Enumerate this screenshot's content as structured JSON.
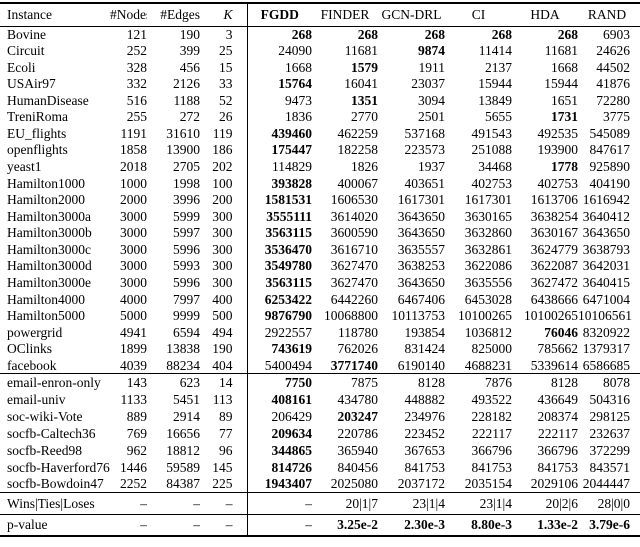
{
  "table": {
    "columns": [
      {
        "key": "instance",
        "label": "Instance"
      },
      {
        "key": "nodes",
        "label": "#Nodes"
      },
      {
        "key": "edges",
        "label": "#Edges"
      },
      {
        "key": "k",
        "label": "K",
        "italic": true
      },
      {
        "key": "fgdd",
        "label": "FGDD",
        "bold": true
      },
      {
        "key": "finder",
        "label": "FINDER"
      },
      {
        "key": "gcn_drl",
        "label": "GCN-DRL"
      },
      {
        "key": "ci",
        "label": "CI"
      },
      {
        "key": "hda",
        "label": "HDA"
      },
      {
        "key": "rand",
        "label": "RAND"
      }
    ],
    "groups": [
      {
        "rows": [
          {
            "label": "Bovine",
            "nodes": "121",
            "edges": "190",
            "k": "3",
            "values": [
              "268",
              "268",
              "268",
              "268",
              "268",
              "6903"
            ],
            "bold": [
              true,
              true,
              true,
              true,
              true,
              false
            ]
          },
          {
            "label": "Circuit",
            "nodes": "252",
            "edges": "399",
            "k": "25",
            "values": [
              "24090",
              "11681",
              "9874",
              "11414",
              "11681",
              "24626"
            ],
            "bold": [
              false,
              false,
              true,
              false,
              false,
              false
            ]
          },
          {
            "label": "Ecoli",
            "nodes": "328",
            "edges": "456",
            "k": "15",
            "values": [
              "1668",
              "1579",
              "1911",
              "2137",
              "1668",
              "44502"
            ],
            "bold": [
              false,
              true,
              false,
              false,
              false,
              false
            ]
          },
          {
            "label": "USAir97",
            "nodes": "332",
            "edges": "2126",
            "k": "33",
            "values": [
              "15764",
              "16041",
              "23037",
              "15944",
              "15944",
              "41876"
            ],
            "bold": [
              true,
              false,
              false,
              false,
              false,
              false
            ]
          },
          {
            "label": "HumanDisease",
            "nodes": "516",
            "edges": "1188",
            "k": "52",
            "values": [
              "9473",
              "1351",
              "3094",
              "13849",
              "1651",
              "72280"
            ],
            "bold": [
              false,
              true,
              false,
              false,
              false,
              false
            ]
          },
          {
            "label": "TreniRoma",
            "nodes": "255",
            "edges": "272",
            "k": "26",
            "values": [
              "1836",
              "2770",
              "2501",
              "5655",
              "1731",
              "3775"
            ],
            "bold": [
              false,
              false,
              false,
              false,
              true,
              false
            ]
          },
          {
            "label": "EU_flights",
            "nodes": "1191",
            "edges": "31610",
            "k": "119",
            "values": [
              "439460",
              "462259",
              "537168",
              "491543",
              "492535",
              "545089"
            ],
            "bold": [
              true,
              false,
              false,
              false,
              false,
              false
            ]
          },
          {
            "label": "openflights",
            "nodes": "1858",
            "edges": "13900",
            "k": "186",
            "values": [
              "175447",
              "182258",
              "223573",
              "251088",
              "193900",
              "847617"
            ],
            "bold": [
              true,
              false,
              false,
              false,
              false,
              false
            ]
          },
          {
            "label": "yeast1",
            "nodes": "2018",
            "edges": "2705",
            "k": "202",
            "values": [
              "114829",
              "1826",
              "1937",
              "34468",
              "1778",
              "925890"
            ],
            "bold": [
              false,
              false,
              false,
              false,
              true,
              false
            ]
          },
          {
            "label": "Hamilton1000",
            "nodes": "1000",
            "edges": "1998",
            "k": "100",
            "values": [
              "393828",
              "400067",
              "403651",
              "402753",
              "402753",
              "404190"
            ],
            "bold": [
              true,
              false,
              false,
              false,
              false,
              false
            ]
          },
          {
            "label": "Hamilton2000",
            "nodes": "2000",
            "edges": "3996",
            "k": "200",
            "values": [
              "1581531",
              "1606530",
              "1617301",
              "1617301",
              "1613706",
              "1616942"
            ],
            "bold": [
              true,
              false,
              false,
              false,
              false,
              false
            ]
          },
          {
            "label": "Hamilton3000a",
            "nodes": "3000",
            "edges": "5999",
            "k": "300",
            "values": [
              "3555111",
              "3614020",
              "3643650",
              "3630165",
              "3638254",
              "3640412"
            ],
            "bold": [
              true,
              false,
              false,
              false,
              false,
              false
            ]
          },
          {
            "label": "Hamilton3000b",
            "nodes": "3000",
            "edges": "5997",
            "k": "300",
            "values": [
              "3563115",
              "3600590",
              "3643650",
              "3632860",
              "3630167",
              "3643650"
            ],
            "bold": [
              true,
              false,
              false,
              false,
              false,
              false
            ]
          },
          {
            "label": "Hamilton3000c",
            "nodes": "3000",
            "edges": "5996",
            "k": "300",
            "values": [
              "3536470",
              "3616710",
              "3635557",
              "3632861",
              "3624779",
              "3638793"
            ],
            "bold": [
              true,
              false,
              false,
              false,
              false,
              false
            ]
          },
          {
            "label": "Hamilton3000d",
            "nodes": "3000",
            "edges": "5993",
            "k": "300",
            "values": [
              "3549780",
              "3627470",
              "3638253",
              "3622086",
              "3622087",
              "3642031"
            ],
            "bold": [
              true,
              false,
              false,
              false,
              false,
              false
            ]
          },
          {
            "label": "Hamilton3000e",
            "nodes": "3000",
            "edges": "5996",
            "k": "300",
            "values": [
              "3563115",
              "3627470",
              "3643650",
              "3635556",
              "3627472",
              "3640415"
            ],
            "bold": [
              true,
              false,
              false,
              false,
              false,
              false
            ]
          },
          {
            "label": "Hamilton4000",
            "nodes": "4000",
            "edges": "7997",
            "k": "400",
            "values": [
              "6253422",
              "6442260",
              "6467406",
              "6453028",
              "6438666",
              "6471004"
            ],
            "bold": [
              true,
              false,
              false,
              false,
              false,
              false
            ]
          },
          {
            "label": "Hamilton5000",
            "nodes": "5000",
            "edges": "9999",
            "k": "500",
            "values": [
              "9876790",
              "10068800",
              "10113753",
              "10100265",
              "10100265",
              "10106561"
            ],
            "bold": [
              true,
              false,
              false,
              false,
              false,
              false
            ]
          },
          {
            "label": "powergrid",
            "nodes": "4941",
            "edges": "6594",
            "k": "494",
            "values": [
              "2922557",
              "118780",
              "193854",
              "1036812",
              "76046",
              "8320922"
            ],
            "bold": [
              false,
              false,
              false,
              false,
              true,
              false
            ]
          },
          {
            "label": "OClinks",
            "nodes": "1899",
            "edges": "13838",
            "k": "190",
            "values": [
              "743619",
              "762026",
              "831424",
              "825000",
              "785662",
              "1379317"
            ],
            "bold": [
              true,
              false,
              false,
              false,
              false,
              false
            ]
          },
          {
            "label": "facebook",
            "nodes": "4039",
            "edges": "88234",
            "k": "404",
            "values": [
              "5400494",
              "3771740",
              "6190140",
              "4688231",
              "5339614",
              "6586685"
            ],
            "bold": [
              false,
              true,
              false,
              false,
              false,
              false
            ]
          }
        ]
      },
      {
        "rows": [
          {
            "label": "email-enron-only",
            "nodes": "143",
            "edges": "623",
            "k": "14",
            "values": [
              "7750",
              "7875",
              "8128",
              "7876",
              "8128",
              "8078"
            ],
            "bold": [
              true,
              false,
              false,
              false,
              false,
              false
            ]
          },
          {
            "label": "email-univ",
            "nodes": "1133",
            "edges": "5451",
            "k": "113",
            "values": [
              "408161",
              "434780",
              "448882",
              "493522",
              "436649",
              "504316"
            ],
            "bold": [
              true,
              false,
              false,
              false,
              false,
              false
            ]
          },
          {
            "label": "soc-wiki-Vote",
            "nodes": "889",
            "edges": "2914",
            "k": "89",
            "values": [
              "206429",
              "203247",
              "234976",
              "228182",
              "208374",
              "298125"
            ],
            "bold": [
              false,
              true,
              false,
              false,
              false,
              false
            ]
          },
          {
            "label": "socfb-Caltech36",
            "nodes": "769",
            "edges": "16656",
            "k": "77",
            "values": [
              "209634",
              "220786",
              "223452",
              "222117",
              "222117",
              "232637"
            ],
            "bold": [
              true,
              false,
              false,
              false,
              false,
              false
            ]
          },
          {
            "label": "socfb-Reed98",
            "nodes": "962",
            "edges": "18812",
            "k": "96",
            "values": [
              "344865",
              "365940",
              "367653",
              "366796",
              "366796",
              "372299"
            ],
            "bold": [
              true,
              false,
              false,
              false,
              false,
              false
            ]
          },
          {
            "label": "socfb-Haverford76",
            "nodes": "1446",
            "edges": "59589",
            "k": "145",
            "values": [
              "814726",
              "840456",
              "841753",
              "841753",
              "841753",
              "843571"
            ],
            "bold": [
              true,
              false,
              false,
              false,
              false,
              false
            ]
          },
          {
            "label": "socfb-Bowdoin47",
            "nodes": "2252",
            "edges": "84387",
            "k": "225",
            "values": [
              "1943407",
              "2025080",
              "2037172",
              "2035154",
              "2029106",
              "2044447"
            ],
            "bold": [
              true,
              false,
              false,
              false,
              false,
              false
            ]
          }
        ]
      }
    ],
    "summary": [
      {
        "label": "Wins|Ties|Loses",
        "nodes": "–",
        "edges": "–",
        "k": "–",
        "values": [
          "–",
          "20|1|7",
          "23|1|4",
          "23|1|4",
          "20|2|6",
          "28|0|0"
        ],
        "bold": [
          false,
          false,
          false,
          false,
          false,
          false
        ]
      },
      {
        "label": "p-value",
        "nodes": "–",
        "edges": "–",
        "k": "–",
        "values": [
          "–",
          "3.25e-2",
          "2.30e-3",
          "8.80e-3",
          "1.33e-2",
          "3.79e-6"
        ],
        "bold": [
          false,
          true,
          true,
          true,
          true,
          true
        ]
      }
    ]
  }
}
